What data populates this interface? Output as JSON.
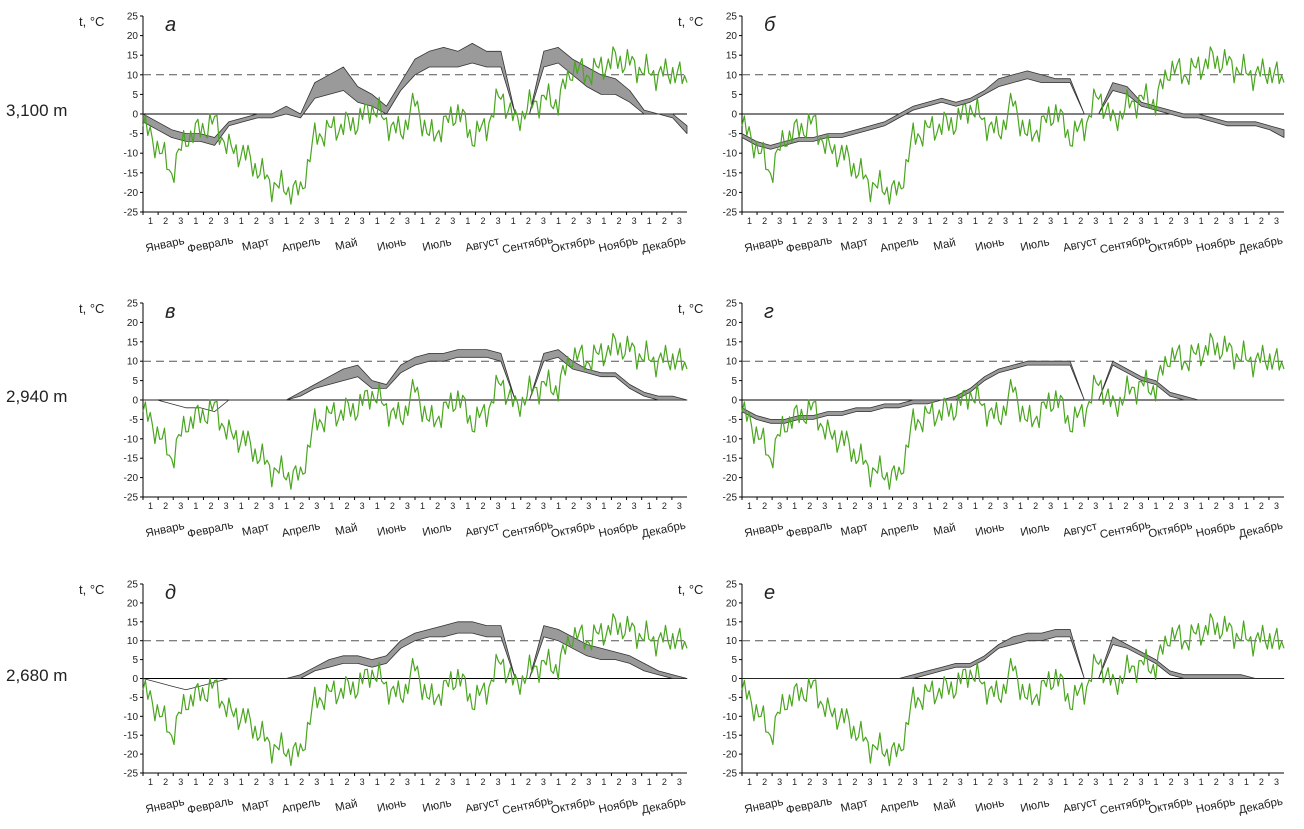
{
  "figure": {
    "altitude_labels": [
      "3,100 m",
      "2,940 m",
      "2,680 m"
    ],
    "y_unit_label": "t, °C"
  },
  "colors": {
    "air": "#4aa61f",
    "band_fill": "#9a9a9a",
    "band_stroke": "#333333",
    "axis": "#000000",
    "threshold": "#555555"
  },
  "chart_data": [
    {
      "id": "a",
      "letter": "а",
      "type": "area",
      "altitude": "3,100 m",
      "ylim": [
        -25,
        25
      ],
      "yticks": [
        25,
        20,
        15,
        10,
        5,
        0,
        -5,
        -10,
        -15,
        -20,
        -25
      ],
      "threshold": 10,
      "months": [
        "Январь",
        "Февраль",
        "Март",
        "Апрель",
        "Май",
        "Июнь",
        "Июль",
        "Август",
        "Сентябрь",
        "Октябрь",
        "Ноябрь",
        "Декабрь"
      ],
      "decades": [
        "1",
        "2",
        "3"
      ],
      "gap": [
        21.5,
        23.5
      ],
      "air": [
        -3,
        -8,
        -15,
        -6,
        -4,
        -2,
        -9,
        -10,
        -14,
        -18,
        -19,
        -20,
        -6,
        -4,
        -3,
        -2,
        2,
        -2,
        -5,
        3,
        -6,
        -3,
        1,
        -6,
        -3,
        5,
        -2,
        2,
        4,
        3,
        12,
        10,
        12,
        14,
        13,
        11,
        10,
        11,
        8
      ],
      "band_upper": [
        0,
        -2,
        -4,
        -5,
        -5,
        -6,
        -2,
        -1,
        0,
        0,
        2,
        0,
        8,
        10,
        12,
        7,
        5,
        2,
        8,
        14,
        16,
        17,
        16,
        18,
        16,
        16,
        0,
        0,
        16,
        17,
        14,
        12,
        10,
        9,
        6,
        1,
        0,
        0,
        -3
      ],
      "band_lower": [
        -2,
        -4,
        -6,
        -7,
        -7,
        -8,
        -3,
        -2,
        -1,
        -1,
        0,
        -1,
        4,
        5,
        6,
        3,
        2,
        0,
        6,
        10,
        12,
        12,
        12,
        13,
        12,
        12,
        0,
        0,
        12,
        13,
        10,
        7,
        5,
        5,
        3,
        0,
        0,
        -1,
        -5
      ]
    },
    {
      "id": "b",
      "letter": "б",
      "type": "area",
      "altitude": "3,100 m",
      "ylim": [
        -25,
        25
      ],
      "yticks": [
        25,
        20,
        15,
        10,
        5,
        0,
        -5,
        -10,
        -15,
        -20,
        -25
      ],
      "threshold": 10,
      "months": [
        "Январь",
        "Февраль",
        "Март",
        "Апрель",
        "Май",
        "Июнь",
        "Июль",
        "Август",
        "Сентябрь",
        "Октябрь",
        "Ноябрь",
        "Декабрь"
      ],
      "decades": [
        "1",
        "2",
        "3"
      ],
      "gap": [
        21.5,
        23.5
      ],
      "air": [
        -3,
        -8,
        -15,
        -6,
        -4,
        -2,
        -9,
        -10,
        -14,
        -18,
        -19,
        -20,
        -6,
        -4,
        -3,
        -2,
        2,
        -2,
        -5,
        3,
        -6,
        -3,
        1,
        -6,
        -3,
        5,
        -2,
        2,
        4,
        3,
        12,
        10,
        12,
        14,
        13,
        11,
        10,
        11,
        8
      ],
      "band_upper": [
        -5,
        -7,
        -8,
        -7,
        -6,
        -6,
        -5,
        -5,
        -4,
        -3,
        -2,
        0,
        2,
        3,
        4,
        3,
        4,
        6,
        9,
        10,
        11,
        10,
        9,
        9,
        0,
        0,
        8,
        7,
        3,
        2,
        1,
        0,
        0,
        -1,
        -2,
        -2,
        -2,
        -3,
        -4
      ],
      "band_lower": [
        -6,
        -8,
        -9,
        -8,
        -7,
        -7,
        -6,
        -6,
        -5,
        -4,
        -3,
        -1,
        1,
        2,
        3,
        2,
        3,
        5,
        7,
        8,
        9,
        8,
        8,
        8,
        0,
        0,
        6,
        5,
        2,
        1,
        0,
        -1,
        -1,
        -2,
        -3,
        -3,
        -3,
        -4,
        -6
      ]
    },
    {
      "id": "v",
      "letter": "в",
      "type": "area",
      "altitude": "2,940 m",
      "ylim": [
        -25,
        25
      ],
      "yticks": [
        25,
        20,
        15,
        10,
        5,
        0,
        -5,
        -10,
        -15,
        -20,
        -25
      ],
      "threshold": 10,
      "months": [
        "Январь",
        "Февраль",
        "Март",
        "Апрель",
        "Май",
        "Июнь",
        "Июль",
        "Август",
        "Сентябрь",
        "Октябрь",
        "Ноябрь",
        "Декабрь"
      ],
      "decades": [
        "1",
        "2",
        "3"
      ],
      "gap": [
        21.5,
        23.5
      ],
      "air": [
        -3,
        -8,
        -15,
        -6,
        -4,
        -2,
        -9,
        -10,
        -14,
        -18,
        -19,
        -20,
        -6,
        -4,
        -3,
        -2,
        2,
        -2,
        -5,
        3,
        -6,
        -3,
        1,
        -6,
        -3,
        5,
        -2,
        2,
        4,
        3,
        12,
        10,
        12,
        14,
        13,
        11,
        10,
        11,
        8
      ],
      "band_upper": [
        0,
        0,
        -1,
        -2,
        -2,
        -3,
        0,
        0,
        0,
        0,
        0,
        2,
        4,
        6,
        8,
        9,
        5,
        4,
        9,
        11,
        12,
        12,
        13,
        13,
        13,
        12,
        0,
        0,
        12,
        13,
        10,
        8,
        7,
        7,
        4,
        2,
        1,
        1,
        0
      ],
      "band_lower": [
        0,
        0,
        -1,
        -2,
        -2,
        -3,
        0,
        0,
        0,
        0,
        0,
        1,
        3,
        4,
        5,
        6,
        3,
        3,
        7,
        9,
        10,
        10,
        11,
        11,
        11,
        10,
        0,
        0,
        10,
        11,
        8,
        7,
        6,
        6,
        3,
        1,
        0,
        0,
        0
      ]
    },
    {
      "id": "g",
      "letter": "г",
      "type": "area",
      "altitude": "2,940 m",
      "ylim": [
        -25,
        25
      ],
      "yticks": [
        25,
        20,
        15,
        10,
        5,
        0,
        -5,
        -10,
        -15,
        -20,
        -25
      ],
      "threshold": 10,
      "months": [
        "Январь",
        "Февраль",
        "Март",
        "Апрель",
        "Май",
        "Июнь",
        "Июль",
        "Август",
        "Сентябрь",
        "Октябрь",
        "Ноябрь",
        "Декабрь"
      ],
      "decades": [
        "1",
        "2",
        "3"
      ],
      "gap": [
        21.5,
        23.5
      ],
      "air": [
        -3,
        -8,
        -15,
        -6,
        -4,
        -2,
        -9,
        -10,
        -14,
        -18,
        -19,
        -20,
        -6,
        -4,
        -3,
        -2,
        2,
        -2,
        -5,
        3,
        -6,
        -3,
        1,
        -6,
        -3,
        5,
        -2,
        2,
        4,
        3,
        12,
        10,
        12,
        14,
        13,
        11,
        10,
        11,
        8
      ],
      "band_upper": [
        -2,
        -4,
        -5,
        -5,
        -4,
        -4,
        -3,
        -3,
        -2,
        -2,
        -1,
        -1,
        0,
        0,
        0,
        1,
        3,
        6,
        8,
        9,
        10,
        10,
        10,
        10,
        0,
        0,
        10,
        8,
        6,
        5,
        2,
        1,
        0,
        0,
        0,
        0,
        0,
        0,
        0
      ],
      "band_lower": [
        -3,
        -5,
        -6,
        -6,
        -5,
        -5,
        -4,
        -4,
        -3,
        -3,
        -2,
        -2,
        -1,
        -1,
        0,
        0,
        2,
        5,
        7,
        8,
        9,
        9,
        9,
        9,
        0,
        0,
        9,
        7,
        5,
        4,
        1,
        0,
        0,
        0,
        0,
        0,
        0,
        0,
        0
      ]
    },
    {
      "id": "d",
      "letter": "д",
      "type": "area",
      "altitude": "2,680 m",
      "ylim": [
        -25,
        25
      ],
      "yticks": [
        25,
        20,
        15,
        10,
        5,
        0,
        -5,
        -10,
        -15,
        -20,
        -25
      ],
      "threshold": 10,
      "months": [
        "Январь",
        "Февраль",
        "Март",
        "Апрель",
        "Май",
        "Июнь",
        "Июль",
        "Август",
        "Сентябрь",
        "Октябрь",
        "Ноябрь",
        "Декабрь"
      ],
      "decades": [
        "1",
        "2",
        "3"
      ],
      "gap": [
        21.5,
        23.5
      ],
      "air": [
        -3,
        -8,
        -15,
        -6,
        -4,
        -2,
        -9,
        -10,
        -14,
        -18,
        -19,
        -20,
        -6,
        -4,
        -3,
        -2,
        2,
        -2,
        -5,
        3,
        -6,
        -3,
        1,
        -6,
        -3,
        5,
        -2,
        2,
        4,
        3,
        12,
        10,
        12,
        14,
        13,
        11,
        10,
        11,
        8
      ],
      "band_upper": [
        0,
        -1,
        -2,
        -3,
        -2,
        -1,
        0,
        0,
        0,
        0,
        0,
        1,
        3,
        5,
        6,
        6,
        5,
        6,
        10,
        12,
        13,
        14,
        15,
        15,
        14,
        14,
        0,
        0,
        14,
        13,
        11,
        9,
        8,
        7,
        6,
        4,
        2,
        1,
        0
      ],
      "band_lower": [
        0,
        -1,
        -2,
        -3,
        -2,
        -1,
        0,
        0,
        0,
        0,
        0,
        0,
        2,
        3,
        4,
        4,
        3,
        4,
        8,
        10,
        11,
        11,
        12,
        12,
        11,
        11,
        0,
        0,
        11,
        10,
        8,
        6,
        5,
        5,
        4,
        2,
        1,
        0,
        0
      ]
    },
    {
      "id": "e",
      "letter": "е",
      "type": "area",
      "altitude": "2,680 m",
      "ylim": [
        -25,
        25
      ],
      "yticks": [
        25,
        20,
        15,
        10,
        5,
        0,
        -5,
        -10,
        -15,
        -20,
        -25
      ],
      "threshold": 10,
      "months": [
        "Январь",
        "Февраль",
        "Март",
        "Апрель",
        "Май",
        "Июнь",
        "Июль",
        "Август",
        "Сентябрь",
        "Октябрь",
        "Ноябрь",
        "Декабрь"
      ],
      "decades": [
        "1",
        "2",
        "3"
      ],
      "gap": [
        21.5,
        23.5
      ],
      "air": [
        -3,
        -8,
        -15,
        -6,
        -4,
        -2,
        -9,
        -10,
        -14,
        -18,
        -19,
        -20,
        -6,
        -4,
        -3,
        -2,
        2,
        -2,
        -5,
        3,
        -6,
        -3,
        1,
        -6,
        -3,
        5,
        -2,
        2,
        4,
        3,
        12,
        10,
        12,
        14,
        13,
        11,
        10,
        11,
        8
      ],
      "band_upper": [
        0,
        0,
        0,
        0,
        0,
        0,
        0,
        0,
        0,
        0,
        0,
        0,
        1,
        2,
        3,
        4,
        4,
        6,
        9,
        11,
        12,
        12,
        13,
        13,
        0,
        0,
        11,
        9,
        7,
        5,
        2,
        1,
        1,
        1,
        1,
        1,
        0,
        0,
        0
      ],
      "band_lower": [
        0,
        0,
        0,
        0,
        0,
        0,
        0,
        0,
        0,
        0,
        0,
        0,
        0,
        1,
        2,
        3,
        3,
        5,
        8,
        9,
        10,
        10,
        11,
        11,
        0,
        0,
        9,
        8,
        6,
        4,
        1,
        0,
        0,
        0,
        0,
        0,
        0,
        0,
        0
      ]
    }
  ]
}
